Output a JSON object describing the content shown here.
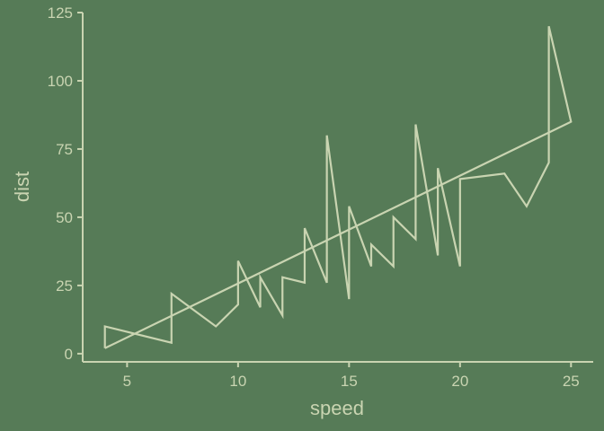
{
  "chart_data": {
    "type": "line",
    "title": "",
    "xlabel": "speed",
    "ylabel": "dist",
    "xlim": [
      3,
      26
    ],
    "ylim": [
      -3,
      125
    ],
    "x_ticks": [
      5,
      10,
      15,
      20,
      25
    ],
    "y_ticks": [
      0,
      25,
      50,
      75,
      100,
      125
    ],
    "grid": false,
    "legend": "none",
    "colors": {
      "background": "#567b57",
      "foreground": "#c9d4b1"
    },
    "series": [
      {
        "points": [
          [
            4,
            2
          ],
          [
            4,
            10
          ],
          [
            7,
            4
          ],
          [
            7,
            22
          ],
          [
            8,
            16
          ],
          [
            9,
            10
          ],
          [
            10,
            18
          ],
          [
            10,
            26
          ],
          [
            10,
            34
          ],
          [
            11,
            17
          ],
          [
            11,
            28
          ],
          [
            12,
            14
          ],
          [
            12,
            20
          ],
          [
            12,
            24
          ],
          [
            12,
            28
          ],
          [
            13,
            26
          ],
          [
            13,
            34
          ],
          [
            13,
            34
          ],
          [
            13,
            46
          ],
          [
            14,
            26
          ],
          [
            14,
            36
          ],
          [
            14,
            60
          ],
          [
            14,
            80
          ],
          [
            15,
            20
          ],
          [
            15,
            26
          ],
          [
            15,
            54
          ],
          [
            16,
            32
          ],
          [
            16,
            40
          ],
          [
            17,
            32
          ],
          [
            17,
            40
          ],
          [
            17,
            50
          ],
          [
            18,
            42
          ],
          [
            18,
            56
          ],
          [
            18,
            76
          ],
          [
            18,
            84
          ],
          [
            19,
            36
          ],
          [
            19,
            46
          ],
          [
            19,
            68
          ],
          [
            20,
            32
          ],
          [
            20,
            48
          ],
          [
            20,
            52
          ],
          [
            20,
            56
          ],
          [
            20,
            64
          ],
          [
            22,
            66
          ],
          [
            23,
            54
          ],
          [
            24,
            70
          ],
          [
            24,
            92
          ],
          [
            24,
            93
          ],
          [
            24,
            120
          ],
          [
            25,
            85
          ],
          [
            4,
            2
          ],
          [
            25,
            85
          ]
        ]
      }
    ]
  }
}
